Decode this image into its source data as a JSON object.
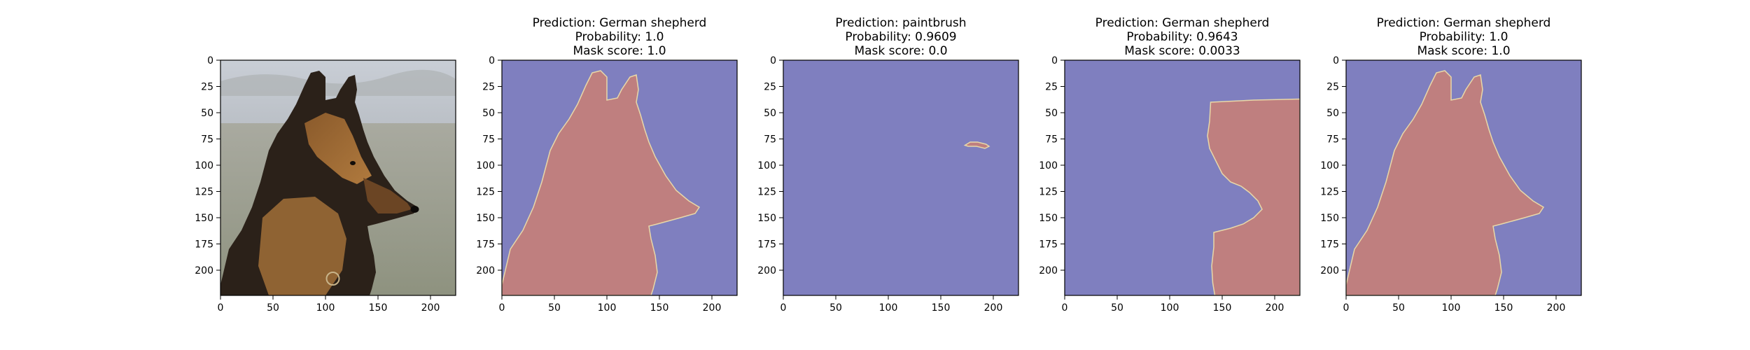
{
  "figure": {
    "background": "#ffffff",
    "mask_colors": {
      "background": "#7f7fbf",
      "foreground": "#bf7f7f",
      "edge": "#e8d8a8"
    }
  },
  "chart_data": [
    {
      "type": "image",
      "content": "photo",
      "title_lines": [],
      "xlim": [
        0,
        224
      ],
      "ylim": [
        224,
        0
      ],
      "xticks": [
        0,
        50,
        100,
        150,
        200
      ],
      "yticks": [
        0,
        25,
        50,
        75,
        100,
        125,
        150,
        175,
        200
      ]
    },
    {
      "type": "image",
      "content": "mask",
      "title_lines": [
        "Prediction: German shepherd",
        "Probability: 1.0",
        "Mask score: 1.0"
      ],
      "prediction": "German shepherd",
      "probability": 1.0,
      "mask_score": 1.0,
      "xlim": [
        0,
        224
      ],
      "ylim": [
        224,
        0
      ],
      "xticks": [
        0,
        50,
        100,
        150,
        200
      ],
      "yticks": [
        0,
        25,
        50,
        75,
        100,
        125,
        150,
        175,
        200
      ],
      "mask_regions": [
        [
          [
            0,
            214
          ],
          [
            8,
            180
          ],
          [
            20,
            162
          ],
          [
            30,
            140
          ],
          [
            38,
            116
          ],
          [
            46,
            86
          ],
          [
            54,
            70
          ],
          [
            64,
            56
          ],
          [
            72,
            42
          ],
          [
            80,
            24
          ],
          [
            86,
            12
          ],
          [
            94,
            10
          ],
          [
            100,
            16
          ],
          [
            100,
            38
          ],
          [
            110,
            36
          ],
          [
            114,
            28
          ],
          [
            122,
            16
          ],
          [
            128,
            14
          ],
          [
            130,
            28
          ],
          [
            128,
            40
          ],
          [
            132,
            52
          ],
          [
            136,
            66
          ],
          [
            140,
            78
          ],
          [
            146,
            92
          ],
          [
            156,
            110
          ],
          [
            166,
            124
          ],
          [
            178,
            134
          ],
          [
            188,
            140
          ],
          [
            184,
            146
          ],
          [
            170,
            150
          ],
          [
            148,
            156
          ],
          [
            140,
            158
          ],
          [
            142,
            170
          ],
          [
            146,
            186
          ],
          [
            148,
            202
          ],
          [
            144,
            218
          ],
          [
            142,
            224
          ],
          [
            130,
            224
          ],
          [
            0,
            224
          ]
        ]
      ]
    },
    {
      "type": "image",
      "content": "mask",
      "title_lines": [
        "Prediction: paintbrush",
        "Probability: 0.9609",
        "Mask score: 0.0"
      ],
      "prediction": "paintbrush",
      "probability": 0.9609,
      "mask_score": 0.0,
      "xlim": [
        0,
        224
      ],
      "ylim": [
        224,
        0
      ],
      "xticks": [
        0,
        50,
        100,
        150,
        200
      ],
      "yticks": [
        0,
        25,
        50,
        75,
        100,
        125,
        150,
        175,
        200
      ],
      "mask_regions": [
        [
          [
            173,
            81
          ],
          [
            178,
            78
          ],
          [
            185,
            78
          ],
          [
            193,
            80
          ],
          [
            196,
            82
          ],
          [
            192,
            84
          ],
          [
            184,
            82
          ],
          [
            176,
            82
          ]
        ]
      ]
    },
    {
      "type": "image",
      "content": "mask",
      "title_lines": [
        "Prediction: German shepherd",
        "Probability: 0.9643",
        "Mask score: 0.0033"
      ],
      "prediction": "German shepherd",
      "probability": 0.9643,
      "mask_score": 0.0033,
      "xlim": [
        0,
        224
      ],
      "ylim": [
        224,
        0
      ],
      "xticks": [
        0,
        50,
        100,
        150,
        200
      ],
      "yticks": [
        0,
        25,
        50,
        75,
        100,
        125,
        150,
        175,
        200
      ],
      "mask_regions": [
        [
          [
            139,
            40
          ],
          [
            180,
            38
          ],
          [
            224,
            37
          ],
          [
            224,
            224
          ],
          [
            143,
            224
          ],
          [
            141,
            212
          ],
          [
            140,
            196
          ],
          [
            142,
            178
          ],
          [
            142,
            164
          ],
          [
            158,
            160
          ],
          [
            170,
            156
          ],
          [
            180,
            150
          ],
          [
            188,
            142
          ],
          [
            184,
            134
          ],
          [
            176,
            126
          ],
          [
            168,
            120
          ],
          [
            158,
            116
          ],
          [
            150,
            108
          ],
          [
            144,
            96
          ],
          [
            138,
            84
          ],
          [
            136,
            72
          ],
          [
            138,
            58
          ]
        ]
      ]
    },
    {
      "type": "image",
      "content": "mask",
      "title_lines": [
        "Prediction: German shepherd",
        "Probability: 1.0",
        "Mask score: 1.0"
      ],
      "prediction": "German shepherd",
      "probability": 1.0,
      "mask_score": 1.0,
      "xlim": [
        0,
        224
      ],
      "ylim": [
        224,
        0
      ],
      "xticks": [
        0,
        50,
        100,
        150,
        200
      ],
      "yticks": [
        0,
        25,
        50,
        75,
        100,
        125,
        150,
        175,
        200
      ],
      "mask_regions": [
        [
          [
            0,
            214
          ],
          [
            8,
            180
          ],
          [
            20,
            162
          ],
          [
            30,
            140
          ],
          [
            38,
            116
          ],
          [
            46,
            86
          ],
          [
            54,
            70
          ],
          [
            64,
            56
          ],
          [
            72,
            42
          ],
          [
            80,
            24
          ],
          [
            86,
            12
          ],
          [
            94,
            10
          ],
          [
            100,
            16
          ],
          [
            100,
            38
          ],
          [
            110,
            36
          ],
          [
            114,
            28
          ],
          [
            122,
            16
          ],
          [
            128,
            14
          ],
          [
            130,
            28
          ],
          [
            128,
            40
          ],
          [
            132,
            52
          ],
          [
            136,
            66
          ],
          [
            140,
            78
          ],
          [
            146,
            92
          ],
          [
            156,
            110
          ],
          [
            166,
            124
          ],
          [
            178,
            134
          ],
          [
            188,
            140
          ],
          [
            184,
            146
          ],
          [
            170,
            150
          ],
          [
            148,
            156
          ],
          [
            140,
            158
          ],
          [
            142,
            170
          ],
          [
            146,
            186
          ],
          [
            148,
            202
          ],
          [
            144,
            218
          ],
          [
            142,
            224
          ],
          [
            130,
            224
          ],
          [
            0,
            224
          ]
        ]
      ]
    }
  ]
}
